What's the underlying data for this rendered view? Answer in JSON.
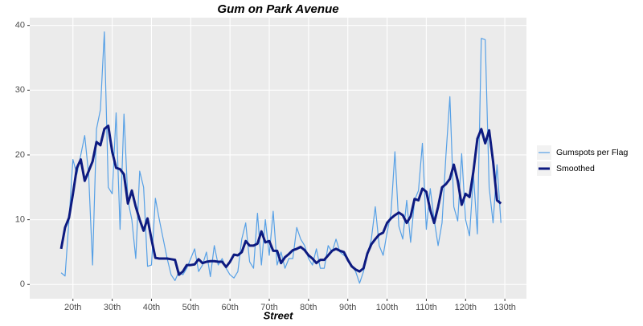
{
  "chart_data": {
    "type": "line",
    "title": "Gum on Park Avenue",
    "x_label": "Street",
    "x": [
      17,
      18,
      19,
      20,
      21,
      22,
      23,
      24,
      25,
      26,
      27,
      28,
      29,
      30,
      31,
      32,
      33,
      34,
      35,
      36,
      37,
      38,
      39,
      40,
      41,
      42,
      43,
      44,
      45,
      46,
      47,
      48,
      49,
      50,
      51,
      52,
      53,
      54,
      55,
      56,
      57,
      58,
      59,
      60,
      61,
      62,
      63,
      64,
      65,
      66,
      67,
      68,
      69,
      70,
      71,
      72,
      73,
      74,
      75,
      76,
      77,
      78,
      79,
      80,
      81,
      82,
      83,
      84,
      85,
      86,
      87,
      88,
      89,
      90,
      91,
      92,
      93,
      94,
      95,
      96,
      97,
      98,
      99,
      100,
      101,
      102,
      103,
      104,
      105,
      106,
      107,
      108,
      109,
      110,
      111,
      112,
      113,
      114,
      115,
      116,
      117,
      118,
      119,
      120,
      121,
      122,
      123,
      124,
      125,
      126,
      127,
      128,
      129
    ],
    "series": [
      {
        "name": "Gumspots per Flag",
        "color": "#56a0e6",
        "width": 1.2,
        "values": [
          1.8,
          1.3,
          10,
          19.3,
          17,
          20,
          23,
          17,
          3,
          24,
          27,
          39,
          15,
          14,
          26.5,
          8.5,
          26.3,
          13,
          10,
          4,
          17.5,
          15,
          2.8,
          3,
          13.3,
          10,
          7,
          4,
          1.5,
          0.6,
          2,
          1.5,
          2.5,
          4,
          5.5,
          2,
          3,
          5,
          1.2,
          6,
          3,
          4,
          2.5,
          1.5,
          1,
          2,
          7,
          9.5,
          3.5,
          2.5,
          11,
          3,
          10,
          4.5,
          11.3,
          3,
          5,
          2.5,
          4,
          4,
          8.8,
          7,
          6,
          4,
          3,
          5.5,
          2.5,
          2.5,
          6,
          5,
          7,
          5,
          4.5,
          4,
          3,
          2,
          0.2,
          2,
          4.5,
          7,
          12,
          6,
          4.5,
          8,
          11,
          20.5,
          9,
          7,
          13,
          6.5,
          13,
          14.5,
          21.8,
          8.5,
          14.8,
          10,
          6,
          9.5,
          20,
          29,
          12,
          9.8,
          20.2,
          10,
          7.5,
          17,
          7.8,
          38,
          37.8,
          15,
          9.5,
          18.5,
          9.5
        ]
      },
      {
        "name": "Smoothed",
        "color": "#0d1a80",
        "width": 3,
        "values": [
          5.5,
          8.8,
          10.3,
          14,
          18,
          19.3,
          16,
          17.5,
          19,
          22,
          21.5,
          24,
          24.5,
          20.5,
          18,
          17.8,
          17,
          12.5,
          14.5,
          12,
          10,
          8.3,
          10.2,
          7,
          4.1,
          4,
          4,
          4,
          3.9,
          3.8,
          1.5,
          2,
          3,
          3,
          3.1,
          3.9,
          3.3,
          3.5,
          3.6,
          3.6,
          3.5,
          3.5,
          2.7,
          3.5,
          4.6,
          4.5,
          5,
          6.7,
          6,
          6,
          6.3,
          8.2,
          6.5,
          6.7,
          5.2,
          5.2,
          3.3,
          4.2,
          4.7,
          5.3,
          5.5,
          5.8,
          5.3,
          4.5,
          4,
          3.3,
          3.8,
          3.8,
          4.5,
          5.2,
          5.5,
          5.2,
          5,
          3.8,
          2.8,
          2.3,
          2,
          2.5,
          4.8,
          6.2,
          7,
          7.7,
          8,
          9.5,
          10.2,
          10.7,
          11.1,
          10.7,
          9.5,
          10.5,
          13.2,
          13,
          14.8,
          14.3,
          11.5,
          9.5,
          12,
          15,
          15.5,
          16.3,
          18.5,
          16,
          12.3,
          14,
          13.5,
          17.5,
          22.5,
          24,
          21.8,
          23.8,
          19,
          13,
          12.5
        ]
      }
    ],
    "xlim": [
      9,
      135.5
    ],
    "ylim": [
      -2.2,
      41.2
    ],
    "xticks": [
      {
        "value": 20,
        "label": "20th"
      },
      {
        "value": 30,
        "label": "30th"
      },
      {
        "value": 40,
        "label": "40th"
      },
      {
        "value": 50,
        "label": "50th"
      },
      {
        "value": 60,
        "label": "60th"
      },
      {
        "value": 70,
        "label": "70th"
      },
      {
        "value": 80,
        "label": "80th"
      },
      {
        "value": 90,
        "label": "90th"
      },
      {
        "value": 100,
        "label": "100th"
      },
      {
        "value": 110,
        "label": "110th"
      },
      {
        "value": 120,
        "label": "120th"
      },
      {
        "value": 130,
        "label": "130th"
      }
    ],
    "yticks": [
      0,
      10,
      20,
      30,
      40
    ],
    "grid": true
  }
}
